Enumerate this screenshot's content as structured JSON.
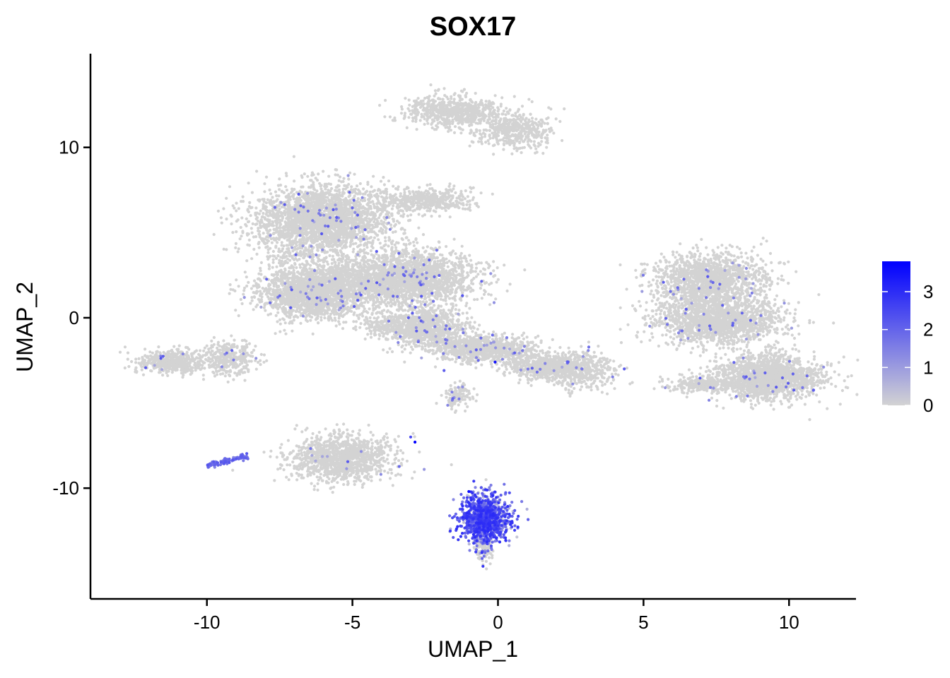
{
  "chart_data": {
    "type": "scatter",
    "title": "SOX17",
    "xlabel": "UMAP_1",
    "ylabel": "UMAP_2",
    "xlim": [
      -14,
      12.3
    ],
    "ylim": [
      -16.5,
      15.5
    ],
    "x_ticks": [
      -10,
      -5,
      0,
      5,
      10
    ],
    "y_ticks": [
      -10,
      0,
      10
    ],
    "x_tick_labels": [
      "-10",
      "-5",
      "0",
      "5",
      "10"
    ],
    "y_tick_labels": [
      "-10",
      "0",
      "10"
    ],
    "grid": false,
    "legend": {
      "placement": "right",
      "type": "colorbar",
      "range": [
        0,
        3.8
      ],
      "ticks": [
        0,
        1,
        2,
        3
      ],
      "tick_labels": [
        "0",
        "1",
        "2",
        "3"
      ],
      "low_color": "#D3D3D3",
      "high_color": "#0000FF"
    },
    "point_color_low": "#D3D3D3",
    "point_color_high": "#0000FF",
    "clusters": [
      {
        "cx": -1.5,
        "cy": 12.1,
        "sx": 1.1,
        "sy": 0.6,
        "n": 700,
        "expr": 0,
        "shape": "ellipse"
      },
      {
        "cx": 0.6,
        "cy": 11.0,
        "sx": 0.9,
        "sy": 0.7,
        "n": 450,
        "expr": 0,
        "shape": "ellipse"
      },
      {
        "cx": -6.0,
        "cy": 5.8,
        "sx": 1.5,
        "sy": 1.3,
        "n": 2600,
        "expr": 0.02,
        "shape": "ellipse"
      },
      {
        "cx": -2.5,
        "cy": 6.9,
        "sx": 1.1,
        "sy": 0.45,
        "n": 500,
        "expr": 0,
        "shape": "ellipse"
      },
      {
        "cx": -6.4,
        "cy": 1.5,
        "sx": 1.2,
        "sy": 1.0,
        "n": 1900,
        "expr": 0.02,
        "shape": "ellipse"
      },
      {
        "cx": -3.2,
        "cy": 2.3,
        "sx": 1.6,
        "sy": 1.1,
        "n": 2300,
        "expr": 0.02,
        "shape": "ellipse"
      },
      {
        "cx": -2.6,
        "cy": -0.5,
        "sx": 1.0,
        "sy": 0.7,
        "n": 900,
        "expr": 0.02,
        "shape": "ellipse"
      },
      {
        "cx": -0.5,
        "cy": -1.8,
        "sx": 1.2,
        "sy": 0.5,
        "n": 800,
        "expr": 0.04,
        "shape": "ellipse"
      },
      {
        "cx": 1.6,
        "cy": -2.9,
        "sx": 0.9,
        "sy": 0.45,
        "n": 450,
        "expr": 0.02,
        "shape": "ellipse"
      },
      {
        "cx": 2.9,
        "cy": -3.0,
        "sx": 0.8,
        "sy": 0.8,
        "n": 450,
        "expr": 0.02,
        "shape": "ellipse"
      },
      {
        "cx": -1.4,
        "cy": -4.6,
        "sx": 0.35,
        "sy": 0.45,
        "n": 120,
        "expr": 0.03,
        "shape": "ellipse"
      },
      {
        "cx": -11.2,
        "cy": -2.6,
        "sx": 0.8,
        "sy": 0.45,
        "n": 500,
        "expr": 0.01,
        "shape": "ellipse"
      },
      {
        "cx": -9.2,
        "cy": -2.4,
        "sx": 0.55,
        "sy": 0.7,
        "n": 320,
        "expr": 0.02,
        "shape": "ellipse"
      },
      {
        "cx": -5.4,
        "cy": -8.2,
        "sx": 1.2,
        "sy": 0.9,
        "n": 1200,
        "expr": 0.01,
        "shape": "ellipse"
      },
      {
        "cx": 7.2,
        "cy": 2.2,
        "sx": 1.3,
        "sy": 1.1,
        "n": 1500,
        "expr": 0.02,
        "shape": "ellipse"
      },
      {
        "cx": 7.6,
        "cy": -0.2,
        "sx": 1.4,
        "sy": 0.9,
        "n": 1500,
        "expr": 0.02,
        "shape": "ellipse"
      },
      {
        "cx": 9.3,
        "cy": -3.5,
        "sx": 1.2,
        "sy": 0.85,
        "n": 1700,
        "expr": 0.02,
        "shape": "ellipse"
      },
      {
        "cx": 7.0,
        "cy": -3.9,
        "sx": 0.8,
        "sy": 0.3,
        "n": 300,
        "expr": 0.01,
        "shape": "ellipse"
      },
      {
        "cx": -0.45,
        "cy": -11.8,
        "sx": 0.55,
        "sy": 0.9,
        "n": 1100,
        "expr": 0.8,
        "shape": "ellipse"
      },
      {
        "cx": -0.5,
        "cy": -13.5,
        "sx": 0.2,
        "sy": 0.55,
        "n": 120,
        "expr": 0.1,
        "shape": "ellipse"
      }
    ],
    "line_segments": [
      {
        "x0": -10.0,
        "y0": -8.7,
        "x1": -8.6,
        "y1": -8.1,
        "n": 90,
        "expr": 0.5,
        "spread": 0.08
      },
      {
        "x0": -4.5,
        "y0": -0.3,
        "x1": 2.0,
        "y1": -3.0,
        "n": 500,
        "expr": 0.02,
        "spread": 0.35
      },
      {
        "x0": -8.5,
        "y0": 5.5,
        "x1": -4.0,
        "y1": 1.0,
        "n": 250,
        "expr": 0.01,
        "spread": 0.4
      }
    ],
    "highlight_points": [
      {
        "x": -2.85,
        "y": -7.3,
        "value": 3.8
      },
      {
        "x": -3.0,
        "y": -7.0,
        "value": 2.5
      },
      {
        "x": -0.1,
        "y": -2.6,
        "value": 3.5
      },
      {
        "x": -1.0,
        "y": -10.2,
        "value": 3.6
      }
    ]
  }
}
